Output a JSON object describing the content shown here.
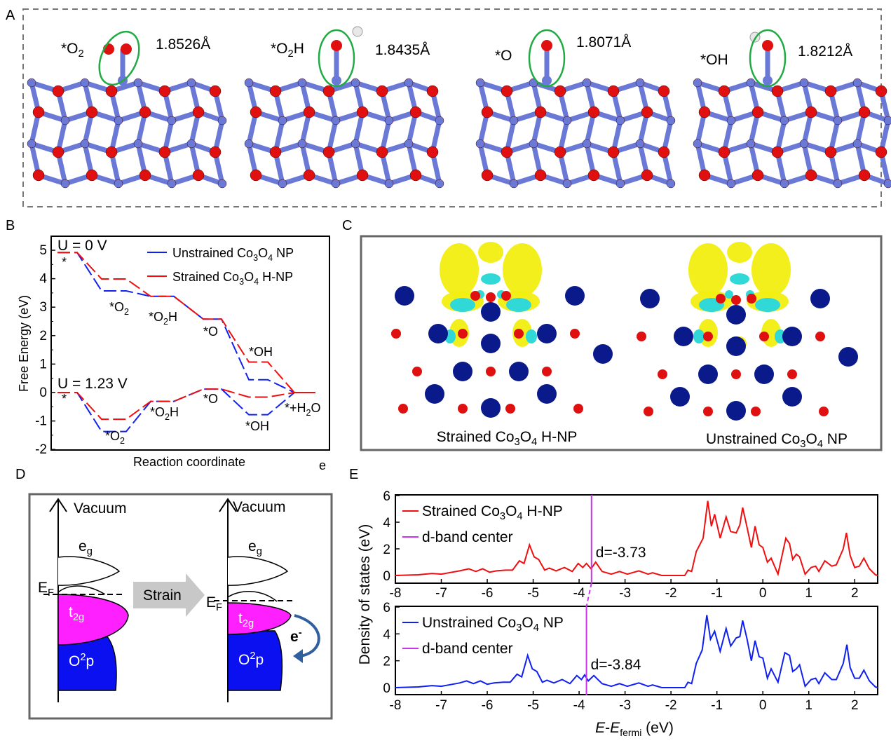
{
  "panels": {
    "A": "A",
    "B": "B",
    "C": "C",
    "D": "D",
    "E": "E"
  },
  "panel_a": {
    "structures": [
      {
        "label": "*O2",
        "bond": "1.8526Å"
      },
      {
        "label": "*O2H",
        "bond": "1.8435Å"
      },
      {
        "label": "*O",
        "bond": "1.8071Å"
      },
      {
        "label": "*OH",
        "bond": "1.8212Å"
      }
    ],
    "colors": {
      "co_atom": "#6a78d6",
      "o_atom": "#e01010",
      "h_atom": "#e8e8e8",
      "highlight": "#22aa44"
    }
  },
  "panel_c": {
    "labels": [
      "Strained Co3O4 H-NP",
      "Unstrained Co3O4 NP"
    ],
    "colors": {
      "co": "#0a1a8a",
      "o": "#e01010",
      "positive": "#f2ee10",
      "negative": "#30d8d8"
    }
  },
  "panel_d": {
    "vacuum": "Vacuum",
    "eg": "eg",
    "ef": "EF",
    "t2g": "t2g",
    "o2p": "O2p",
    "strain": "Strain",
    "electron": "e-",
    "colors": {
      "t2g": "#ff20ff",
      "o2p": "#0a10f0",
      "arrow": "#3060a0",
      "strain_arrow": "#c8c8c8"
    }
  },
  "chart_data": [
    {
      "type": "line",
      "panel": "B",
      "xlabel": "Reaction coordinate",
      "ylabel": "Free Energy (eV)",
      "ylim": [
        -2,
        5.5
      ],
      "yticks": [
        "5",
        "4",
        "3",
        "2",
        "1",
        "0",
        "-1",
        "-2"
      ],
      "stray_label": "e",
      "states_u0": [
        "*",
        "*O2",
        "*O2H",
        "*O",
        "*OH",
        ""
      ],
      "states_u123": [
        "*",
        "*O2",
        "*O2H",
        "*O",
        "*OH",
        "*+H2O"
      ],
      "annotations": [
        "U = 0 V",
        "U = 1.23 V"
      ],
      "legend_position": "top-right",
      "series": [
        {
          "name": "Unstrained Co3O4 NP",
          "color": "#1020ee",
          "u0": [
            4.92,
            3.57,
            3.38,
            2.58,
            0.45,
            0
          ],
          "u123": [
            0,
            -1.37,
            -0.31,
            0.12,
            -0.78,
            0
          ]
        },
        {
          "name": "Strained Co3O4 H-NP",
          "color": "#ee1010",
          "u0": [
            4.92,
            3.99,
            3.38,
            2.58,
            1.07,
            0
          ],
          "u123": [
            0,
            -0.94,
            -0.31,
            0.12,
            -0.16,
            0
          ]
        }
      ]
    },
    {
      "type": "line",
      "panel": "E",
      "xlabel": "E-Efermi (eV)",
      "ylabel": "Density of states (eV)",
      "xlim": [
        -8,
        2.5
      ],
      "ylim": [
        0,
        6
      ],
      "xticks": [
        "-8",
        "-7",
        "-6",
        "-5",
        "-4",
        "-3",
        "-2",
        "-1",
        "0",
        "1",
        "2"
      ],
      "yticks": [
        "6",
        "4",
        "2",
        "0"
      ],
      "subplots": [
        {
          "name": "Strained Co3O4 H-NP",
          "color": "#ee1010",
          "dband_label": "d-band center",
          "dband_color": "#cc33ee",
          "d_center": -3.73,
          "d_text": "d=-3.73",
          "points": [
            [
              -8,
              0
            ],
            [
              -7.5,
              0.05
            ],
            [
              -7.2,
              0.15
            ],
            [
              -7,
              0.1
            ],
            [
              -6.6,
              0.35
            ],
            [
              -6.4,
              0.5
            ],
            [
              -6.25,
              0.3
            ],
            [
              -6.1,
              0.5
            ],
            [
              -5.95,
              0.25
            ],
            [
              -5.8,
              0.35
            ],
            [
              -5.6,
              0.4
            ],
            [
              -5.45,
              0.4
            ],
            [
              -5.3,
              1.1
            ],
            [
              -5.2,
              0.9
            ],
            [
              -5.08,
              2.3
            ],
            [
              -4.98,
              1.4
            ],
            [
              -4.88,
              1.2
            ],
            [
              -4.75,
              0.4
            ],
            [
              -4.65,
              0.55
            ],
            [
              -4.5,
              0.35
            ],
            [
              -4.32,
              0.6
            ],
            [
              -4.15,
              0.3
            ],
            [
              -4.02,
              0.9
            ],
            [
              -3.92,
              0.6
            ],
            [
              -3.84,
              0.9
            ],
            [
              -3.74,
              0.5
            ],
            [
              -3.64,
              1.0
            ],
            [
              -3.5,
              0.3
            ],
            [
              -3.3,
              0.1
            ],
            [
              -3.12,
              0.3
            ],
            [
              -2.95,
              0.1
            ],
            [
              -2.7,
              0.35
            ],
            [
              -2.5,
              0.1
            ],
            [
              -2.4,
              0.2
            ],
            [
              -2.2,
              0
            ],
            [
              -1.7,
              0
            ],
            [
              -1.63,
              0.4
            ],
            [
              -1.55,
              0.3
            ],
            [
              -1.45,
              1.8
            ],
            [
              -1.3,
              2.8
            ],
            [
              -1.2,
              5.6
            ],
            [
              -1.12,
              3.7
            ],
            [
              -1.05,
              4.6
            ],
            [
              -0.93,
              2.8
            ],
            [
              -0.8,
              4.4
            ],
            [
              -0.7,
              3.3
            ],
            [
              -0.58,
              3.2
            ],
            [
              -0.5,
              3.8
            ],
            [
              -0.44,
              5.1
            ],
            [
              -0.35,
              3.7
            ],
            [
              -0.25,
              2.1
            ],
            [
              -0.17,
              3.7
            ],
            [
              -0.08,
              2.3
            ],
            [
              0,
              2.1
            ],
            [
              0.1,
              1.0
            ],
            [
              0.18,
              1.3
            ],
            [
              0.33,
              0.1
            ],
            [
              0.5,
              2.8
            ],
            [
              0.58,
              2.4
            ],
            [
              0.65,
              1.2
            ],
            [
              0.73,
              1.6
            ],
            [
              0.8,
              1.4
            ],
            [
              0.92,
              0.1
            ],
            [
              1.05,
              0.6
            ],
            [
              1.15,
              0.7
            ],
            [
              1.22,
              0.3
            ],
            [
              1.35,
              1.1
            ],
            [
              1.5,
              0.7
            ],
            [
              1.6,
              0.8
            ],
            [
              1.75,
              2.0
            ],
            [
              1.82,
              3.2
            ],
            [
              1.9,
              1.5
            ],
            [
              2.0,
              0.6
            ],
            [
              2.1,
              0.7
            ],
            [
              2.2,
              1.3
            ],
            [
              2.32,
              0.5
            ],
            [
              2.45,
              0.05
            ],
            [
              2.5,
              0
            ]
          ]
        },
        {
          "name": "Unstrained Co3O4 NP",
          "color": "#1020ee",
          "dband_label": "d-band center",
          "dband_color": "#cc33ee",
          "d_center": -3.84,
          "d_text": "d=-3.84",
          "points": [
            [
              -8,
              0
            ],
            [
              -7.5,
              0.05
            ],
            [
              -7.2,
              0.15
            ],
            [
              -7,
              0.1
            ],
            [
              -6.6,
              0.35
            ],
            [
              -6.45,
              0.5
            ],
            [
              -6.3,
              0.3
            ],
            [
              -6.15,
              0.5
            ],
            [
              -6,
              0.25
            ],
            [
              -5.85,
              0.35
            ],
            [
              -5.65,
              0.4
            ],
            [
              -5.5,
              0.4
            ],
            [
              -5.35,
              1.0
            ],
            [
              -5.25,
              0.8
            ],
            [
              -5.12,
              2.4
            ],
            [
              -5.02,
              1.4
            ],
            [
              -4.92,
              1.2
            ],
            [
              -4.8,
              0.4
            ],
            [
              -4.7,
              0.55
            ],
            [
              -4.55,
              0.35
            ],
            [
              -4.37,
              0.6
            ],
            [
              -4.2,
              0.3
            ],
            [
              -4.05,
              0.9
            ],
            [
              -3.95,
              0.6
            ],
            [
              -3.88,
              0.95
            ],
            [
              -3.8,
              0.5
            ],
            [
              -3.68,
              0.9
            ],
            [
              -3.5,
              0.3
            ],
            [
              -3.3,
              0.1
            ],
            [
              -3.12,
              0.3
            ],
            [
              -2.95,
              0.1
            ],
            [
              -2.7,
              0.35
            ],
            [
              -2.5,
              0.1
            ],
            [
              -2.4,
              0.2
            ],
            [
              -2.2,
              0
            ],
            [
              -1.7,
              0
            ],
            [
              -1.63,
              0.4
            ],
            [
              -1.55,
              0.3
            ],
            [
              -1.45,
              1.8
            ],
            [
              -1.32,
              2.8
            ],
            [
              -1.22,
              5.4
            ],
            [
              -1.14,
              3.6
            ],
            [
              -1.05,
              4.2
            ],
            [
              -0.93,
              2.7
            ],
            [
              -0.8,
              4.4
            ],
            [
              -0.7,
              3.1
            ],
            [
              -0.58,
              3.7
            ],
            [
              -0.5,
              3.8
            ],
            [
              -0.44,
              5.0
            ],
            [
              -0.35,
              3.7
            ],
            [
              -0.25,
              2.0
            ],
            [
              -0.17,
              3.5
            ],
            [
              -0.08,
              2.3
            ],
            [
              0,
              2.2
            ],
            [
              0.1,
              0.7
            ],
            [
              0.18,
              1.4
            ],
            [
              0.33,
              0.4
            ],
            [
              0.48,
              2.6
            ],
            [
              0.58,
              2.4
            ],
            [
              0.65,
              1.2
            ],
            [
              0.73,
              1.4
            ],
            [
              0.8,
              1.7
            ],
            [
              0.92,
              0.1
            ],
            [
              1.05,
              0.6
            ],
            [
              1.15,
              0.7
            ],
            [
              1.22,
              0.3
            ],
            [
              1.35,
              1.1
            ],
            [
              1.5,
              0.6
            ],
            [
              1.6,
              0.6
            ],
            [
              1.75,
              1.8
            ],
            [
              1.83,
              3.2
            ],
            [
              1.9,
              1.5
            ],
            [
              2.0,
              0.7
            ],
            [
              2.1,
              0.7
            ],
            [
              2.2,
              1.3
            ],
            [
              2.32,
              0.5
            ],
            [
              2.45,
              0.05
            ],
            [
              2.5,
              0
            ]
          ]
        }
      ]
    }
  ]
}
